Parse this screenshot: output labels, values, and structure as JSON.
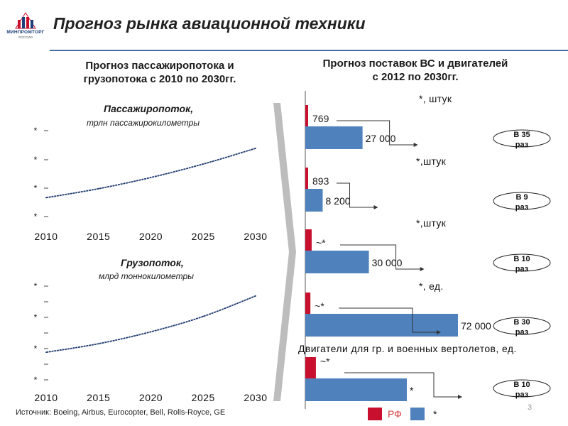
{
  "header": {
    "title": "Прогноз рынка авиационной техники",
    "logo_text": "МИНПРОМТОРГ",
    "logo_sub": "РОССИИ"
  },
  "left": {
    "title_line1": "Прогноз пассажиропотока и",
    "title_line2": "грузопотока с 2010 по 2030гг."
  },
  "right": {
    "title_line1": "Прогноз поставок ВС и двигателей",
    "title_line2": "с 2012 по 2030гг."
  },
  "footer": {
    "source": "Источник: Boeing, Airbus, Eurocopter, Bell, Rolls-Royce, GE",
    "page_number": "3"
  },
  "colors": {
    "rf": "#c8102e",
    "world": "#4f81bd",
    "rf_label_color": "#d63a3a",
    "line": "#1f3a6e"
  },
  "chart_data": [
    {
      "type": "line",
      "title": "Пассажиропоток,",
      "subtitle": "трлн пассажирокилометры",
      "x": [
        2010,
        2015,
        2020,
        2025,
        2030
      ],
      "x_ticks": [
        "2010",
        "2015",
        "2020",
        "2025",
        "2030"
      ],
      "y_ticks": [
        "*",
        "*",
        "*",
        "*"
      ],
      "y_index": [
        1.0,
        1.2,
        1.45,
        1.75,
        2.1
      ],
      "ylim": [
        0.5,
        2.4
      ]
    },
    {
      "type": "line",
      "title": "Грузопоток,",
      "subtitle": "млрд тоннокилометры",
      "x": [
        2010,
        2015,
        2020,
        2025,
        2030
      ],
      "x_ticks": [
        "2010",
        "2015",
        "2020",
        "2025",
        "2030"
      ],
      "y_ticks": [
        "*",
        "*",
        "*",
        "*"
      ],
      "y_index": [
        1.0,
        1.25,
        1.6,
        2.05,
        2.65
      ],
      "ylim": [
        0.4,
        3.0
      ]
    },
    {
      "type": "bar",
      "orientation": "horizontal",
      "groups": [
        {
          "header": "*, штук",
          "rf_label": "769",
          "world_label": "27 000",
          "rf_value": 769,
          "world_value": 27000,
          "ratio": "В 35 раз"
        },
        {
          "header": "*,штук",
          "rf_label": "893",
          "world_label": "8 200",
          "rf_value": 893,
          "world_value": 8200,
          "ratio": "В 9 раз"
        },
        {
          "header": "*,штук",
          "rf_label": "~*",
          "world_label": "30 000",
          "rf_value": 3000,
          "world_value": 30000,
          "ratio": "В 10 раз"
        },
        {
          "header": "*, ед.",
          "rf_label": "~*",
          "world_label": "72 000",
          "rf_value": 2400,
          "world_value": 72000,
          "ratio": "В 30 раз"
        },
        {
          "header": "Двигатели для гр. и военных вертолетов, ед.",
          "rf_label": "~*",
          "world_label": "*",
          "rf_value": 5000,
          "world_value": 50000,
          "ratio": "В 10 раз"
        }
      ],
      "legend": [
        {
          "name": "РФ",
          "color": "#c8102e"
        },
        {
          "name": "*",
          "color": "#4f81bd"
        }
      ]
    }
  ]
}
